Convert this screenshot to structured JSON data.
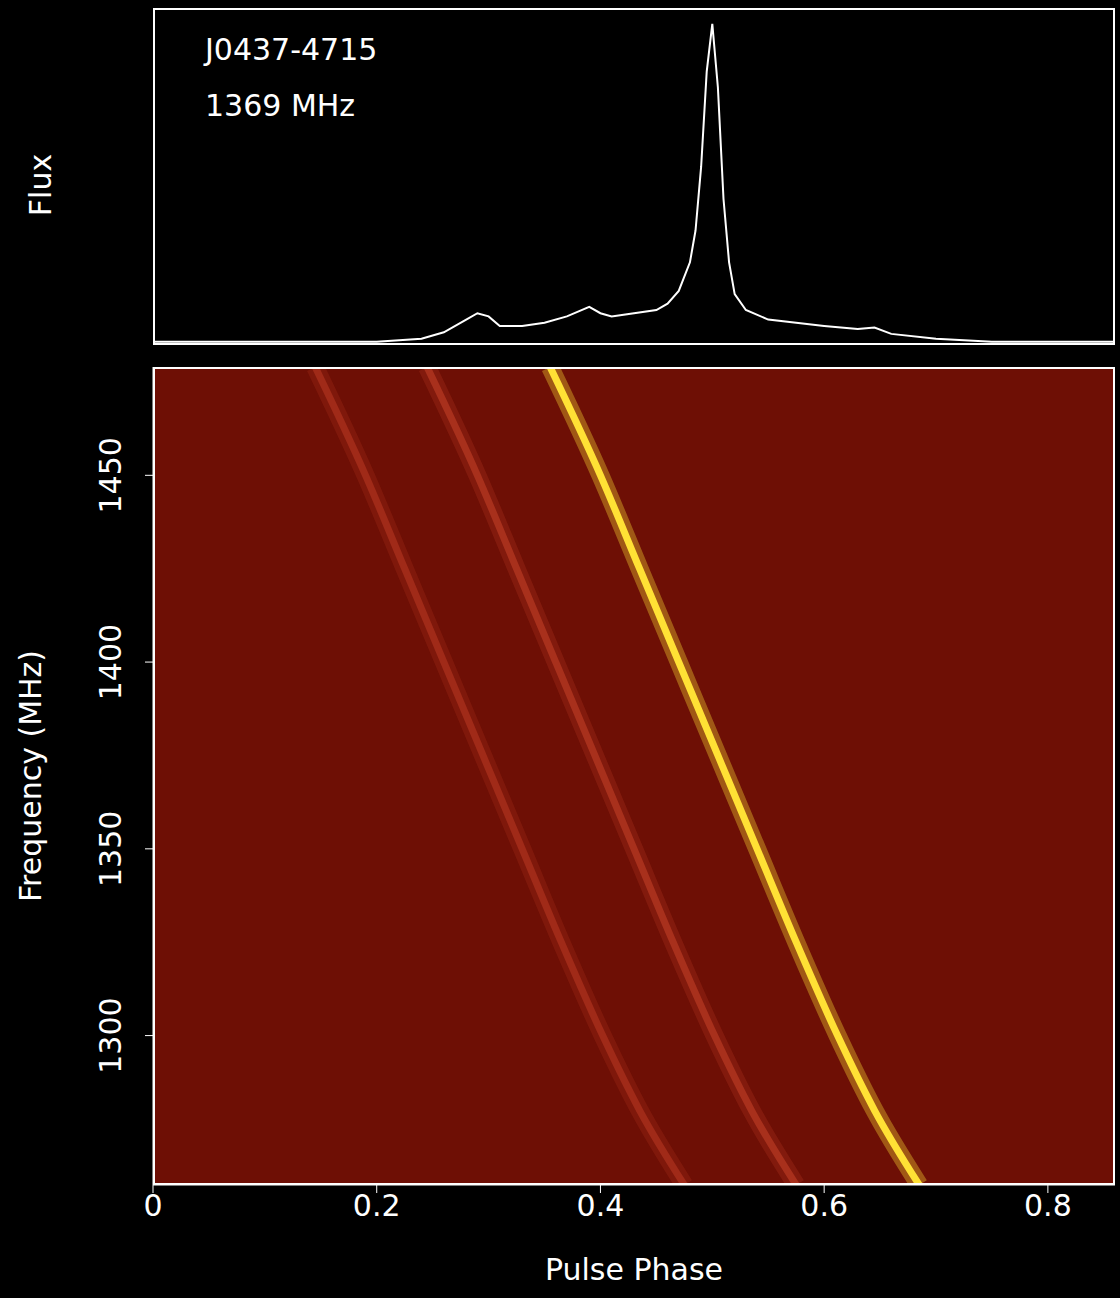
{
  "chart_data": [
    {
      "type": "line",
      "title": "J0437-4715",
      "subtitle": "1369 MHz",
      "ylabel": "Flux",
      "color": "#ffffff",
      "x": [
        0,
        0.05,
        0.1,
        0.15,
        0.2,
        0.24,
        0.26,
        0.28,
        0.29,
        0.3,
        0.31,
        0.33,
        0.35,
        0.37,
        0.39,
        0.4,
        0.41,
        0.43,
        0.45,
        0.46,
        0.47,
        0.48,
        0.485,
        0.49,
        0.495,
        0.5,
        0.505,
        0.51,
        0.515,
        0.52,
        0.53,
        0.55,
        0.6,
        0.63,
        0.645,
        0.66,
        0.7,
        0.75,
        0.86
      ],
      "values": [
        0,
        0,
        0,
        0,
        0,
        0.01,
        0.03,
        0.07,
        0.09,
        0.08,
        0.05,
        0.05,
        0.06,
        0.08,
        0.11,
        0.09,
        0.08,
        0.09,
        0.1,
        0.12,
        0.16,
        0.25,
        0.35,
        0.55,
        0.85,
        1.0,
        0.8,
        0.45,
        0.25,
        0.15,
        0.1,
        0.07,
        0.05,
        0.04,
        0.045,
        0.025,
        0.01,
        0,
        0
      ],
      "xlim": [
        0,
        0.86
      ],
      "xticks": [
        0,
        0.2,
        0.4,
        0.6,
        0.8
      ],
      "ylim": [
        -0.01,
        1.05
      ],
      "tick_labels": false
    },
    {
      "type": "line",
      "xlabel": "Pulse Phase",
      "ylabel": "Frequency (MHz)",
      "xlim": [
        0,
        0.86
      ],
      "xticks": [
        0,
        0.2,
        0.4,
        0.6,
        0.8
      ],
      "ylim": [
        1260,
        1479
      ],
      "yticks": [
        1300,
        1350,
        1400,
        1450
      ],
      "series": [
        {
          "color": "#a02a18",
          "x": [
            0.145,
            0.19,
            0.225,
            0.26,
            0.295,
            0.33,
            0.365,
            0.402,
            0.435,
            0.475
          ],
          "y": [
            1479,
            1450,
            1425,
            1400,
            1375,
            1350,
            1325,
            1300,
            1280,
            1260
          ]
        },
        {
          "color": "#a8301c",
          "x": [
            0.245,
            0.29,
            0.325,
            0.36,
            0.395,
            0.43,
            0.465,
            0.502,
            0.535,
            0.575
          ],
          "y": [
            1479,
            1450,
            1425,
            1400,
            1375,
            1350,
            1325,
            1300,
            1280,
            1260
          ]
        },
        {
          "color": "#ffe135",
          "x": [
            0.355,
            0.4,
            0.435,
            0.47,
            0.505,
            0.54,
            0.575,
            0.612,
            0.645,
            0.685
          ],
          "y": [
            1479,
            1450,
            1425,
            1400,
            1375,
            1350,
            1325,
            1300,
            1280,
            1260
          ]
        }
      ]
    }
  ]
}
